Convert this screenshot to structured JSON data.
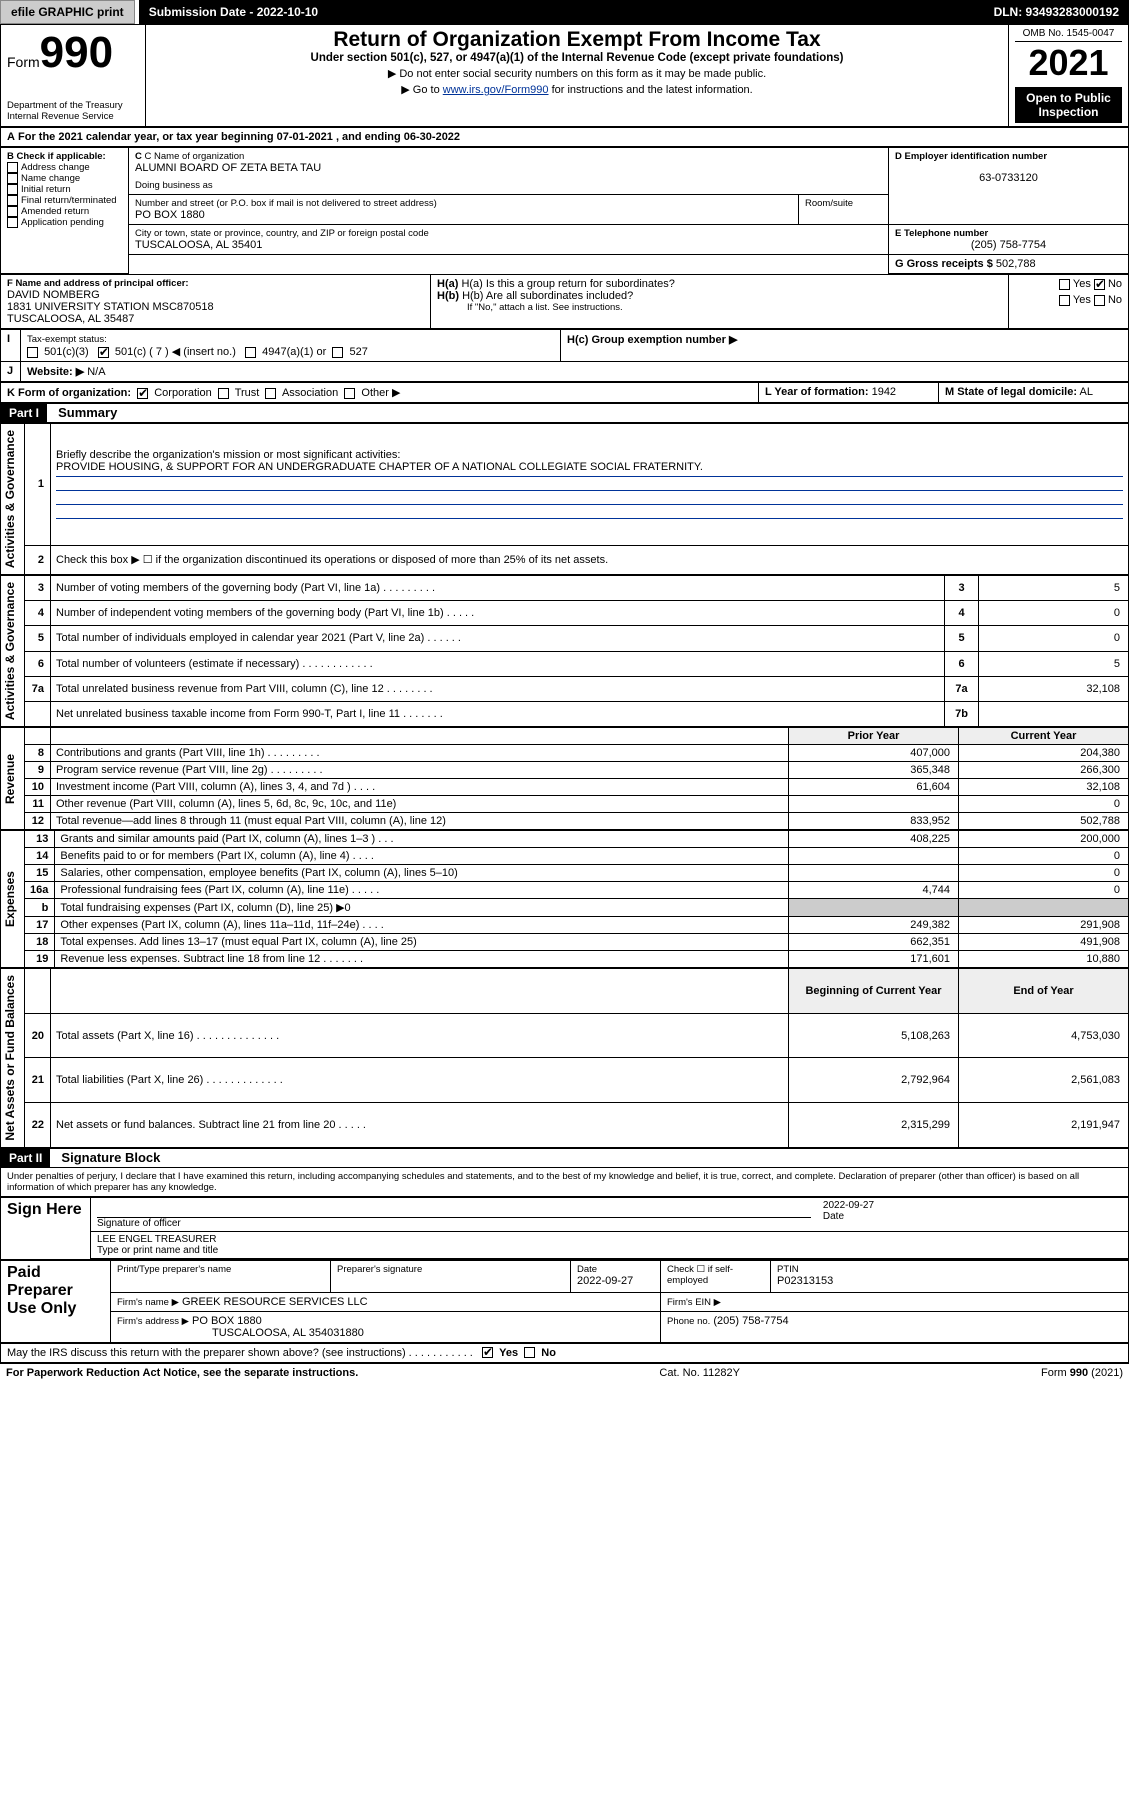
{
  "topbar": {
    "efile": "efile GRAPHIC print",
    "submission_label": "Submission Date - 2022-10-10",
    "dln": "DLN: 93493283000192"
  },
  "header": {
    "form_prefix": "Form",
    "form_number": "990",
    "dept": "Department of the Treasury",
    "irs": "Internal Revenue Service",
    "title": "Return of Organization Exempt From Income Tax",
    "subtitle": "Under section 501(c), 527, or 4947(a)(1) of the Internal Revenue Code (except private foundations)",
    "note1": "▶ Do not enter social security numbers on this form as it may be made public.",
    "note2_pre": "▶ Go to ",
    "note2_link": "www.irs.gov/Form990",
    "note2_post": " for instructions and the latest information.",
    "omb": "OMB No. 1545-0047",
    "year": "2021",
    "open": "Open to Public Inspection"
  },
  "sectionA": {
    "a_text": "For the 2021 calendar year, or tax year beginning 07-01-2021  , and ending 06-30-2022",
    "b_label": "B Check if applicable:",
    "b_items": [
      "Address change",
      "Name change",
      "Initial return",
      "Final return/terminated",
      "Amended return",
      "Application pending"
    ],
    "c_label": "C Name of organization",
    "c_name": "ALUMNI BOARD OF ZETA BETA TAU",
    "dba_label": "Doing business as",
    "addr_label": "Number and street (or P.O. box if mail is not delivered to street address)",
    "room_label": "Room/suite",
    "addr": "PO BOX 1880",
    "city_label": "City or town, state or province, country, and ZIP or foreign postal code",
    "city": "TUSCALOOSA, AL  35401",
    "d_label": "D Employer identification number",
    "d_ein": "63-0733120",
    "e_label": "E Telephone number",
    "e_phone": "(205) 758-7754",
    "g_label": "G Gross receipts $",
    "g_amount": "502,788",
    "f_label": "F  Name and address of principal officer:",
    "f_name": "DAVID NOMBERG",
    "f_addr1": "1831 UNIVERSITY STATION MSC870518",
    "f_addr2": "TUSCALOOSA, AL  35487",
    "h_a": "H(a)  Is this a group return for subordinates?",
    "h_b": "H(b)  Are all subordinates included?",
    "h_b_note": "If \"No,\" attach a list. See instructions.",
    "h_c": "H(c)  Group exemption number ▶",
    "yes": "Yes",
    "no": "No",
    "i_label": "Tax-exempt status:",
    "i_501c3": "501(c)(3)",
    "i_501c": "501(c) ( 7 ) ◀ (insert no.)",
    "i_4947": "4947(a)(1) or",
    "i_527": "527",
    "j_label": "Website: ▶",
    "j_val": "N/A",
    "k_label": "K Form of organization:",
    "k_items": [
      "Corporation",
      "Trust",
      "Association",
      "Other ▶"
    ],
    "l_label": "L Year of formation:",
    "l_val": "1942",
    "m_label": "M State of legal domicile:",
    "m_val": "AL"
  },
  "part1": {
    "header": "Part I",
    "title": "Summary",
    "line1_label": "Briefly describe the organization's mission or most significant activities:",
    "line1_text": "PROVIDE HOUSING, & SUPPORT FOR AN UNDERGRADUATE CHAPTER OF A NATIONAL COLLEGIATE SOCIAL FRATERNITY.",
    "line2": "Check this box ▶ ☐ if the organization discontinued its operations or disposed of more than 25% of its net assets.",
    "vlabels": {
      "gov": "Activities & Governance",
      "rev": "Revenue",
      "exp": "Expenses",
      "net": "Net Assets or Fund Balances"
    },
    "rows_gov": [
      {
        "n": "3",
        "t": "Number of voting members of the governing body (Part VI, line 1a)  .    .    .    .    .    .    .    .    .",
        "rn": "3",
        "v": "5"
      },
      {
        "n": "4",
        "t": "Number of independent voting members of the governing body (Part VI, line 1b)  .    .    .    .    .",
        "rn": "4",
        "v": "0"
      },
      {
        "n": "5",
        "t": "Total number of individuals employed in calendar year 2021 (Part V, line 2a)  .    .    .    .    .    .",
        "rn": "5",
        "v": "0"
      },
      {
        "n": "6",
        "t": "Total number of volunteers (estimate if necessary)  .    .    .    .    .    .    .    .    .    .    .    .",
        "rn": "6",
        "v": "5"
      },
      {
        "n": "7a",
        "t": "Total unrelated business revenue from Part VIII, column (C), line 12  .    .    .    .    .    .    .    .",
        "rn": "7a",
        "v": "32,108"
      },
      {
        "n": "",
        "t": "Net unrelated business taxable income from Form 990-T, Part I, line 11  .    .    .    .    .    .    .",
        "rn": "7b",
        "v": ""
      }
    ],
    "col_prior": "Prior Year",
    "col_current": "Current Year",
    "rows_rev": [
      {
        "n": "8",
        "t": "Contributions and grants (Part VIII, line 1h)  .    .    .    .    .    .    .    .    .",
        "p": "407,000",
        "c": "204,380"
      },
      {
        "n": "9",
        "t": "Program service revenue (Part VIII, line 2g)  .    .    .    .    .    .    .    .    .",
        "p": "365,348",
        "c": "266,300"
      },
      {
        "n": "10",
        "t": "Investment income (Part VIII, column (A), lines 3, 4, and 7d )  .    .    .    .",
        "p": "61,604",
        "c": "32,108"
      },
      {
        "n": "11",
        "t": "Other revenue (Part VIII, column (A), lines 5, 6d, 8c, 9c, 10c, and 11e)",
        "p": "",
        "c": "0"
      },
      {
        "n": "12",
        "t": "Total revenue—add lines 8 through 11 (must equal Part VIII, column (A), line 12)",
        "p": "833,952",
        "c": "502,788"
      }
    ],
    "rows_exp": [
      {
        "n": "13",
        "t": "Grants and similar amounts paid (Part IX, column (A), lines 1–3 )  .    .    .",
        "p": "408,225",
        "c": "200,000"
      },
      {
        "n": "14",
        "t": "Benefits paid to or for members (Part IX, column (A), line 4)  .    .    .    .",
        "p": "",
        "c": "0"
      },
      {
        "n": "15",
        "t": "Salaries, other compensation, employee benefits (Part IX, column (A), lines 5–10)",
        "p": "",
        "c": "0"
      },
      {
        "n": "16a",
        "t": "Professional fundraising fees (Part IX, column (A), line 11e)  .    .    .    .    .",
        "p": "4,744",
        "c": "0"
      },
      {
        "n": "b",
        "t": "Total fundraising expenses (Part IX, column (D), line 25) ▶0",
        "p": "__SHADE__",
        "c": "__SHADE__"
      },
      {
        "n": "17",
        "t": "Other expenses (Part IX, column (A), lines 11a–11d, 11f–24e)  .    .    .    .",
        "p": "249,382",
        "c": "291,908"
      },
      {
        "n": "18",
        "t": "Total expenses. Add lines 13–17 (must equal Part IX, column (A), line 25)",
        "p": "662,351",
        "c": "491,908"
      },
      {
        "n": "19",
        "t": "Revenue less expenses. Subtract line 18 from line 12  .    .    .    .    .    .    .",
        "p": "171,601",
        "c": "10,880"
      }
    ],
    "col_begin": "Beginning of Current Year",
    "col_end": "End of Year",
    "rows_net": [
      {
        "n": "20",
        "t": "Total assets (Part X, line 16)  .    .    .    .    .    .    .    .    .    .    .    .    .    .",
        "p": "5,108,263",
        "c": "4,753,030"
      },
      {
        "n": "21",
        "t": "Total liabilities (Part X, line 26)  .    .    .    .    .    .    .    .    .    .    .    .    .",
        "p": "2,792,964",
        "c": "2,561,083"
      },
      {
        "n": "22",
        "t": "Net assets or fund balances. Subtract line 21 from line 20  .    .    .    .    .",
        "p": "2,315,299",
        "c": "2,191,947"
      }
    ]
  },
  "part2": {
    "header": "Part II",
    "title": "Signature Block",
    "penalty": "Under penalties of perjury, I declare that I have examined this return, including accompanying schedules and statements, and to the best of my knowledge and belief, it is true, correct, and complete. Declaration of preparer (other than officer) is based on all information of which preparer has any knowledge.",
    "sign_here": "Sign Here",
    "sig_officer": "Signature of officer",
    "date_label": "Date",
    "sig_date": "2022-09-27",
    "sig_name": "LEE ENGEL TREASURER",
    "sig_type": "Type or print name and title",
    "paid": "Paid Preparer Use Only",
    "prep_name_label": "Print/Type preparer's name",
    "prep_sig_label": "Preparer's signature",
    "prep_date_label": "Date",
    "prep_date": "2022-09-27",
    "prep_check": "Check ☐ if self-employed",
    "ptin_label": "PTIN",
    "ptin": "P02313153",
    "firm_name_label": "Firm's name    ▶",
    "firm_name": "GREEK RESOURCE SERVICES LLC",
    "firm_ein_label": "Firm's EIN ▶",
    "firm_addr_label": "Firm's address ▶",
    "firm_addr1": "PO BOX 1880",
    "firm_addr2": "TUSCALOOSA, AL  354031880",
    "firm_phone_label": "Phone no.",
    "firm_phone": "(205) 758-7754",
    "may_irs": "May the IRS discuss this return with the preparer shown above? (see instructions)  .    .    .    .    .    .    .    .    .    .    .",
    "may_yes": "Yes",
    "may_no": "No"
  },
  "footer": {
    "left": "For Paperwork Reduction Act Notice, see the separate instructions.",
    "mid": "Cat. No. 11282Y",
    "right": "Form 990 (2021)"
  }
}
